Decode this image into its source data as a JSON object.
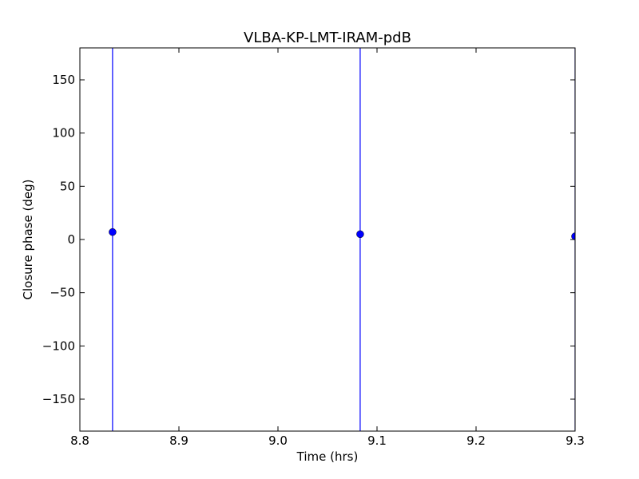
{
  "chart_data": {
    "type": "errorbar",
    "title": "VLBA-KP-LMT-IRAM-pdB",
    "xlabel": "Time (hrs)",
    "ylabel": "Closure phase (deg)",
    "series": [
      {
        "color": "#0000ff",
        "x": [
          8.833,
          9.083,
          9.3
        ],
        "values": [
          7,
          5,
          3
        ],
        "errors": [
          200,
          200,
          200
        ]
      }
    ],
    "xlim": [
      8.8,
      9.3
    ],
    "xticks": [
      8.8,
      8.9,
      {
        "value": 9,
        "label": "9.0"
      },
      9.1,
      9.2,
      9.3
    ],
    "ylim": [
      -180,
      180
    ],
    "yticks": [
      {
        "value": -150,
        "label": "−150"
      },
      {
        "value": -100,
        "label": "−100"
      },
      {
        "value": -50,
        "label": "−50"
      },
      0,
      50,
      100,
      150
    ]
  }
}
